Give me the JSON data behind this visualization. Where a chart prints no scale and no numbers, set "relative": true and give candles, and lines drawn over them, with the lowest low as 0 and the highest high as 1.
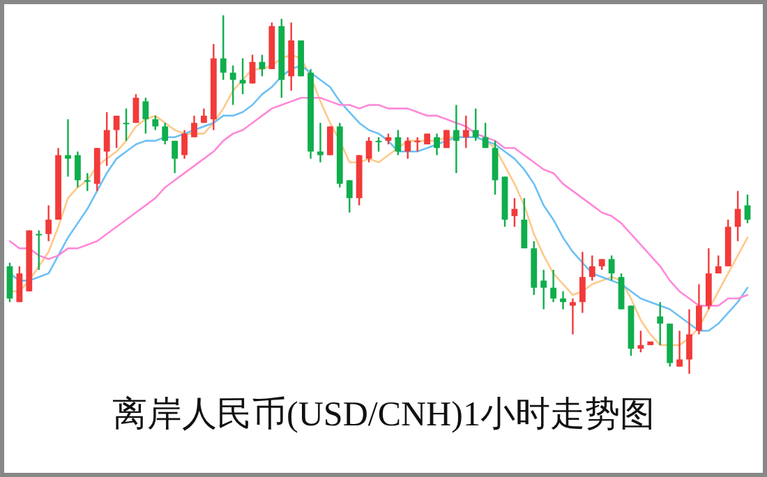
{
  "chart_data": {
    "type": "candlestick",
    "title": "离岸人民币(USD/CNH)1小时走势图",
    "relative": true,
    "categories": [
      null,
      null,
      null,
      null,
      null,
      null,
      null,
      null,
      null,
      null,
      null,
      null,
      null,
      null,
      null,
      null,
      null,
      null,
      null,
      null,
      null,
      null,
      null,
      null,
      null,
      null,
      null,
      null,
      null,
      null,
      null,
      null,
      null,
      null,
      null,
      null,
      null,
      null,
      null,
      null,
      null,
      null,
      null,
      null,
      null,
      null,
      null,
      null,
      null,
      null,
      null,
      null,
      null,
      null,
      null,
      null,
      null,
      null,
      null,
      null,
      null,
      null,
      null,
      null,
      null,
      null,
      null,
      null,
      null,
      null,
      null,
      null,
      null,
      null,
      null,
      null,
      null
    ],
    "ohlc": [
      [
        0.3,
        0.31,
        0.2,
        0.21
      ],
      [
        0.2,
        0.3,
        0.2,
        0.28
      ],
      [
        0.23,
        0.4,
        0.23,
        0.4
      ],
      [
        0.39,
        0.4,
        0.29,
        0.39
      ],
      [
        0.39,
        0.47,
        0.37,
        0.43
      ],
      [
        0.43,
        0.63,
        0.43,
        0.61
      ],
      [
        0.61,
        0.71,
        0.55,
        0.6
      ],
      [
        0.61,
        0.62,
        0.52,
        0.54
      ],
      [
        0.54,
        0.56,
        0.51,
        0.54
      ],
      [
        0.53,
        0.63,
        0.51,
        0.63
      ],
      [
        0.62,
        0.73,
        0.58,
        0.68
      ],
      [
        0.68,
        0.72,
        0.63,
        0.72
      ],
      [
        0.7,
        0.74,
        0.65,
        0.7
      ],
      [
        0.7,
        0.78,
        0.7,
        0.77
      ],
      [
        0.76,
        0.77,
        0.67,
        0.71
      ],
      [
        0.71,
        0.72,
        0.68,
        0.69
      ],
      [
        0.69,
        0.7,
        0.64,
        0.65
      ],
      [
        0.65,
        0.65,
        0.56,
        0.6
      ],
      [
        0.61,
        0.68,
        0.6,
        0.67
      ],
      [
        0.66,
        0.72,
        0.66,
        0.7
      ],
      [
        0.7,
        0.74,
        0.7,
        0.72
      ],
      [
        0.71,
        0.92,
        0.68,
        0.88
      ],
      [
        0.88,
        1.0,
        0.82,
        0.84
      ],
      [
        0.84,
        0.86,
        0.75,
        0.82
      ],
      [
        0.82,
        0.88,
        0.78,
        0.81
      ],
      [
        0.81,
        0.89,
        0.81,
        0.87
      ],
      [
        0.87,
        0.89,
        0.83,
        0.85
      ],
      [
        0.85,
        0.98,
        0.85,
        0.97
      ],
      [
        0.97,
        0.99,
        0.77,
        0.82
      ],
      [
        0.83,
        0.98,
        0.79,
        0.93
      ],
      [
        0.93,
        0.93,
        0.83,
        0.83
      ],
      [
        0.84,
        0.85,
        0.6,
        0.62
      ],
      [
        0.62,
        0.7,
        0.59,
        0.61
      ],
      [
        0.61,
        0.69,
        0.61,
        0.69
      ],
      [
        0.69,
        0.7,
        0.52,
        0.53
      ],
      [
        0.54,
        0.54,
        0.45,
        0.49
      ],
      [
        0.49,
        0.61,
        0.47,
        0.61
      ],
      [
        0.6,
        0.66,
        0.59,
        0.65
      ],
      [
        0.65,
        0.66,
        0.62,
        0.65
      ],
      [
        0.65,
        0.67,
        0.64,
        0.66
      ],
      [
        0.66,
        0.68,
        0.61,
        0.62
      ],
      [
        0.62,
        0.66,
        0.6,
        0.65
      ],
      [
        0.65,
        0.66,
        0.62,
        0.65
      ],
      [
        0.64,
        0.67,
        0.64,
        0.67
      ],
      [
        0.66,
        0.67,
        0.61,
        0.63
      ],
      [
        0.63,
        0.68,
        0.63,
        0.68
      ],
      [
        0.68,
        0.75,
        0.56,
        0.65
      ],
      [
        0.66,
        0.72,
        0.63,
        0.68
      ],
      [
        0.68,
        0.74,
        0.65,
        0.66
      ],
      [
        0.66,
        0.7,
        0.63,
        0.63
      ],
      [
        0.63,
        0.65,
        0.5,
        0.54
      ],
      [
        0.55,
        0.55,
        0.41,
        0.43
      ],
      [
        0.44,
        0.49,
        0.41,
        0.46
      ],
      [
        0.43,
        0.49,
        0.35,
        0.35
      ],
      [
        0.35,
        0.37,
        0.22,
        0.24
      ],
      [
        0.26,
        0.29,
        0.18,
        0.24
      ],
      [
        0.24,
        0.29,
        0.2,
        0.21
      ],
      [
        0.21,
        0.23,
        0.18,
        0.2
      ],
      [
        0.19,
        0.21,
        0.11,
        0.2
      ],
      [
        0.2,
        0.34,
        0.17,
        0.27
      ],
      [
        0.27,
        0.33,
        0.26,
        0.3
      ],
      [
        0.3,
        0.32,
        0.29,
        0.32
      ],
      [
        0.32,
        0.33,
        0.26,
        0.28
      ],
      [
        0.27,
        0.28,
        0.18,
        0.18
      ],
      [
        0.19,
        0.19,
        0.05,
        0.07
      ],
      [
        0.07,
        0.12,
        0.06,
        0.08
      ],
      [
        0.08,
        0.09,
        0.08,
        0.09
      ],
      [
        0.16,
        0.2,
        0.08,
        0.14
      ],
      [
        0.14,
        0.14,
        0.02,
        0.03
      ],
      [
        0.02,
        0.12,
        0.02,
        0.04
      ],
      [
        0.04,
        0.18,
        0.0,
        0.11
      ],
      [
        0.12,
        0.25,
        0.11,
        0.19
      ],
      [
        0.19,
        0.35,
        0.18,
        0.28
      ],
      [
        0.28,
        0.33,
        0.28,
        0.3
      ],
      [
        0.3,
        0.43,
        0.3,
        0.41
      ],
      [
        0.41,
        0.51,
        0.37,
        0.46
      ],
      [
        0.47,
        0.5,
        0.42,
        0.43
      ]
    ],
    "colors": [
      "#0fae4c",
      "#f23a3a",
      "#f23a3a",
      "#0fae4c",
      "#f23a3a",
      "#f23a3a",
      "#0fae4c",
      "#0fae4c",
      "#0fae4c",
      "#f23a3a",
      "#f23a3a",
      "#f23a3a",
      "#0fae4c",
      "#f23a3a",
      "#0fae4c",
      "#0fae4c",
      "#0fae4c",
      "#0fae4c",
      "#f23a3a",
      "#f23a3a",
      "#f23a3a",
      "#f23a3a",
      "#0fae4c",
      "#0fae4c",
      "#0fae4c",
      "#f23a3a",
      "#0fae4c",
      "#f23a3a",
      "#0fae4c",
      "#f23a3a",
      "#0fae4c",
      "#0fae4c",
      "#0fae4c",
      "#f23a3a",
      "#0fae4c",
      "#0fae4c",
      "#f23a3a",
      "#f23a3a",
      "#0fae4c",
      "#f23a3a",
      "#0fae4c",
      "#f23a3a",
      "#f23a3a",
      "#f23a3a",
      "#0fae4c",
      "#f23a3a",
      "#0fae4c",
      "#f23a3a",
      "#0fae4c",
      "#0fae4c",
      "#0fae4c",
      "#0fae4c",
      "#f23a3a",
      "#0fae4c",
      "#0fae4c",
      "#0fae4c",
      "#0fae4c",
      "#0fae4c",
      "#f23a3a",
      "#f23a3a",
      "#f23a3a",
      "#f23a3a",
      "#0fae4c",
      "#0fae4c",
      "#0fae4c",
      "#f23a3a",
      "#f23a3a",
      "#0fae4c",
      "#0fae4c",
      "#f23a3a",
      "#f23a3a",
      "#f23a3a",
      "#f23a3a",
      "#f23a3a",
      "#f23a3a",
      "#f23a3a",
      "#0fae4c"
    ],
    "series": [
      {
        "type": "line",
        "color": "#ffc88a",
        "values": [
          0.23,
          0.23,
          0.26,
          0.3,
          0.34,
          0.41,
          0.49,
          0.52,
          0.54,
          0.58,
          0.6,
          0.62,
          0.65,
          0.69,
          0.71,
          0.72,
          0.7,
          0.68,
          0.67,
          0.67,
          0.67,
          0.7,
          0.74,
          0.79,
          0.82,
          0.85,
          0.85,
          0.86,
          0.88,
          0.89,
          0.88,
          0.83,
          0.76,
          0.7,
          0.65,
          0.59,
          0.59,
          0.6,
          0.59,
          0.61,
          0.63,
          0.65,
          0.65,
          0.65,
          0.65,
          0.66,
          0.66,
          0.66,
          0.66,
          0.65,
          0.63,
          0.58,
          0.53,
          0.47,
          0.39,
          0.33,
          0.28,
          0.25,
          0.22,
          0.23,
          0.25,
          0.26,
          0.27,
          0.26,
          0.21,
          0.15,
          0.11,
          0.08,
          0.08,
          0.08,
          0.1,
          0.13,
          0.18,
          0.23,
          0.28,
          0.33,
          0.38
        ]
      },
      {
        "type": "line",
        "color": "#6cc0f5",
        "values": [
          0.28,
          0.26,
          0.26,
          0.27,
          0.28,
          0.33,
          0.38,
          0.42,
          0.46,
          0.51,
          0.56,
          0.6,
          0.62,
          0.64,
          0.65,
          0.65,
          0.66,
          0.66,
          0.67,
          0.68,
          0.69,
          0.7,
          0.72,
          0.72,
          0.73,
          0.75,
          0.78,
          0.8,
          0.83,
          0.85,
          0.86,
          0.84,
          0.82,
          0.8,
          0.76,
          0.73,
          0.7,
          0.68,
          0.67,
          0.65,
          0.62,
          0.62,
          0.62,
          0.63,
          0.64,
          0.65,
          0.66,
          0.66,
          0.66,
          0.65,
          0.64,
          0.62,
          0.6,
          0.57,
          0.53,
          0.47,
          0.43,
          0.38,
          0.34,
          0.31,
          0.28,
          0.27,
          0.26,
          0.25,
          0.23,
          0.21,
          0.2,
          0.19,
          0.18,
          0.16,
          0.14,
          0.12,
          0.12,
          0.14,
          0.17,
          0.2,
          0.24
        ]
      },
      {
        "type": "line",
        "color": "#ff88d8",
        "values": [
          0.37,
          0.35,
          0.35,
          0.33,
          0.32,
          0.33,
          0.35,
          0.35,
          0.36,
          0.37,
          0.39,
          0.41,
          0.43,
          0.45,
          0.47,
          0.49,
          0.52,
          0.54,
          0.56,
          0.58,
          0.6,
          0.62,
          0.65,
          0.67,
          0.68,
          0.7,
          0.72,
          0.74,
          0.75,
          0.76,
          0.77,
          0.77,
          0.77,
          0.76,
          0.75,
          0.75,
          0.74,
          0.75,
          0.75,
          0.74,
          0.74,
          0.74,
          0.73,
          0.72,
          0.72,
          0.71,
          0.7,
          0.69,
          0.67,
          0.66,
          0.65,
          0.63,
          0.63,
          0.61,
          0.59,
          0.57,
          0.56,
          0.53,
          0.51,
          0.49,
          0.47,
          0.45,
          0.44,
          0.42,
          0.39,
          0.36,
          0.33,
          0.3,
          0.26,
          0.23,
          0.21,
          0.19,
          0.19,
          0.19,
          0.21,
          0.21,
          0.22
        ]
      }
    ]
  }
}
